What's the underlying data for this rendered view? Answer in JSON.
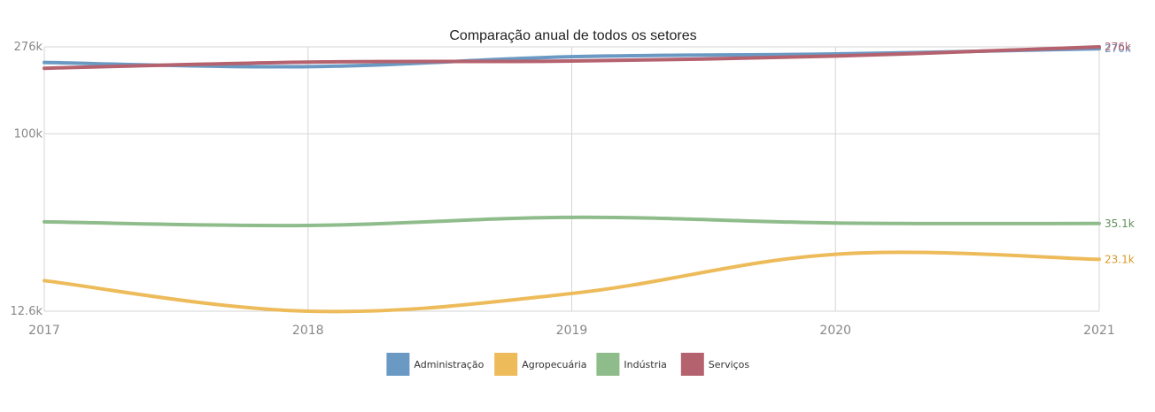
{
  "chart_data": {
    "type": "line",
    "title": "Comparação anual de todos os setores",
    "xlabel": "",
    "ylabel": "",
    "y_scale": "log",
    "x": [
      "2017",
      "2018",
      "2019",
      "2020",
      "2021"
    ],
    "y_ticks": [
      {
        "value": 276000,
        "label": "276k"
      },
      {
        "value": 100000,
        "label": "100k"
      },
      {
        "value": 12600,
        "label": "12.6k"
      }
    ],
    "ylim": [
      12600,
      276000
    ],
    "grid": true,
    "legend_position": "bottom",
    "series": [
      {
        "name": "Administração",
        "color": "#6a9ac4",
        "values": [
          230000,
          219000,
          246000,
          254000,
          270000
        ],
        "end_label": "270k"
      },
      {
        "name": "Agropecuária",
        "color": "#edbb5a",
        "values": [
          18000,
          12600,
          15500,
          24500,
          23100
        ],
        "end_label": "23.1k"
      },
      {
        "name": "Indústria",
        "color": "#8fbc8b",
        "values": [
          35800,
          34300,
          37700,
          35300,
          35100
        ],
        "end_label": "35.1k"
      },
      {
        "name": "Serviços",
        "color": "#b5626f",
        "values": [
          215000,
          231000,
          234000,
          248000,
          276000
        ],
        "end_label": "276k"
      }
    ]
  }
}
